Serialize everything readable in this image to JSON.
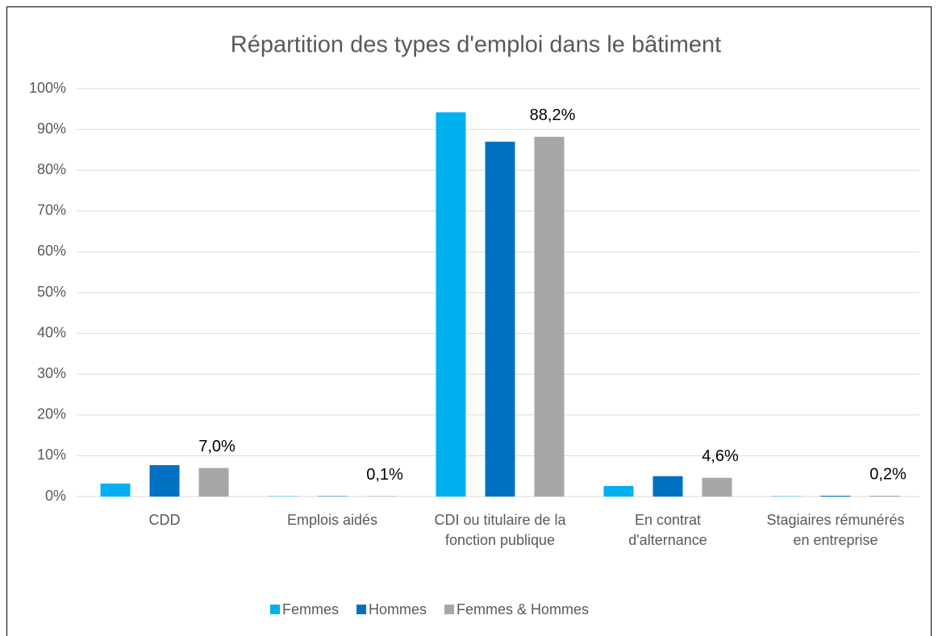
{
  "chart_data": {
    "type": "bar",
    "title": "Répartition des types d'emploi dans le bâtiment",
    "categories": [
      "CDD",
      "Emplois aidés",
      "CDI ou titulaire de la fonction publique",
      "En contrat d'alternance",
      "Stagiaires rémunérés en entreprise"
    ],
    "series": [
      {
        "name": "Femmes",
        "color": "#00b0f0",
        "values": [
          3.2,
          0.1,
          94.2,
          2.6,
          0.1
        ]
      },
      {
        "name": "Hommes",
        "color": "#0070c0",
        "values": [
          7.7,
          0.1,
          87.0,
          5.0,
          0.2
        ]
      },
      {
        "name": "Femmes & Hommes",
        "color": "#a6a6a6",
        "values": [
          7.0,
          0.1,
          88.2,
          4.6,
          0.2
        ],
        "value_labels": [
          "7,0%",
          "0,1%",
          "88,2%",
          "4,6%",
          "0,2%"
        ]
      }
    ],
    "ylim": [
      0,
      100
    ],
    "yticks": [
      {
        "value": 0,
        "label": "0%"
      },
      {
        "value": 10,
        "label": "10%"
      },
      {
        "value": 20,
        "label": "20%"
      },
      {
        "value": 30,
        "label": "30%"
      },
      {
        "value": 40,
        "label": "40%"
      },
      {
        "value": 50,
        "label": "50%"
      },
      {
        "value": 60,
        "label": "60%"
      },
      {
        "value": 70,
        "label": "70%"
      },
      {
        "value": 80,
        "label": "80%"
      },
      {
        "value": 90,
        "label": "90%"
      },
      {
        "value": 100,
        "label": "100%"
      }
    ],
    "grid": true,
    "legend": "bottom"
  }
}
